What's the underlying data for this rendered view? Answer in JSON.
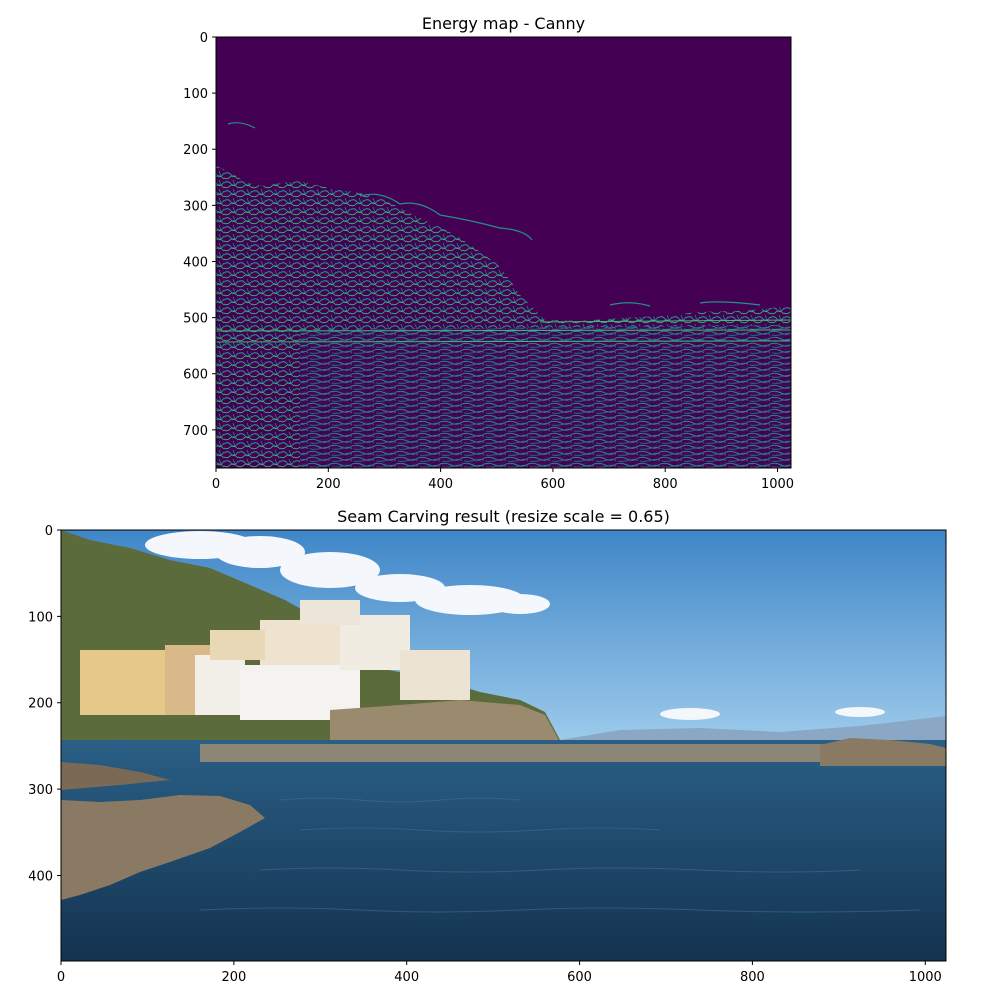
{
  "chart_data": [
    {
      "type": "image",
      "title": "Energy map - Canny",
      "xlabel": "",
      "ylabel": "",
      "xlim": [
        0,
        1024
      ],
      "ylim": [
        768,
        0
      ],
      "xticks": [
        0,
        200,
        400,
        600,
        800,
        1000
      ],
      "yticks": [
        0,
        100,
        200,
        300,
        400,
        500,
        600,
        700
      ],
      "content": "binary edge map (viridis colormap): dark purple background with teal edge lines; dense edges across coastline, town and sea, empty sky",
      "colors": {
        "background": "#440154",
        "edges": "#21918c",
        "edges_bright": "#3fbc73"
      }
    },
    {
      "type": "image",
      "title": "Seam Carving result (resize scale = 0.65)",
      "xlabel": "",
      "ylabel": "",
      "xlim": [
        0,
        1024
      ],
      "ylim": [
        499,
        0
      ],
      "xticks": [
        0,
        200,
        400,
        600,
        800,
        1000
      ],
      "yticks": [
        0,
        100,
        200,
        300,
        400
      ],
      "content": "photo of a coastal town on a hillside with a stone pier, blue sky with clouds, dark blue sea, rocks in the foreground",
      "colors": {
        "sky": "#4a92d4",
        "sky_light": "#8cc0e8",
        "sea": "#1f4f74",
        "sea_dark": "#163a58",
        "hill": "#5a6a3a",
        "buildings": "#e8dcc4",
        "rocks": "#8a7a64"
      }
    }
  ]
}
